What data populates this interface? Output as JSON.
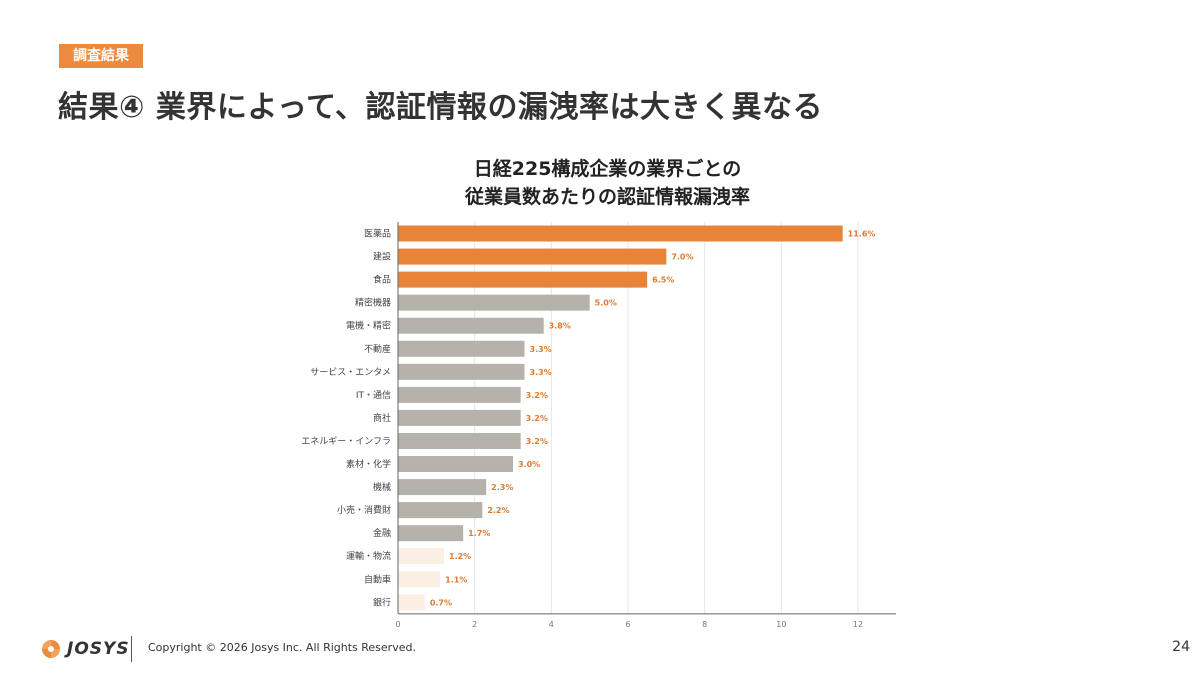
{
  "header": {
    "tag_label": "調査結果",
    "title": "結果④ 業界によって、認証情報の漏洩率は大きく異なる"
  },
  "chart_data": {
    "type": "bar",
    "orientation": "horizontal",
    "title_lines": [
      "日経225構成企業の業界ごとの",
      "従業員数あたりの認証情報漏洩率"
    ],
    "categories": [
      "医薬品",
      "建設",
      "食品",
      "精密機器",
      "電機・精密",
      "不動産",
      "サービス・エンタメ",
      "IT・通信",
      "商社",
      "エネルギー・インフラ",
      "素材・化学",
      "機械",
      "小売・消費財",
      "金融",
      "運輸・物流",
      "自動車",
      "銀行"
    ],
    "values": [
      11.6,
      7.0,
      6.5,
      5.0,
      3.8,
      3.3,
      3.3,
      3.2,
      3.2,
      3.2,
      3.0,
      2.3,
      2.2,
      1.7,
      1.2,
      1.1,
      0.7
    ],
    "value_labels": [
      "11.6%",
      "7.0%",
      "6.5%",
      "5.0%",
      "3.8%",
      "3.3%",
      "3.3%",
      "3.2%",
      "3.2%",
      "3.2%",
      "3.0%",
      "2.3%",
      "2.2%",
      "1.7%",
      "1.2%",
      "1.1%",
      "0.7%"
    ],
    "highlight": [
      "high",
      "high",
      "high",
      "mid",
      "mid",
      "mid",
      "mid",
      "mid",
      "mid",
      "mid",
      "mid",
      "mid",
      "mid",
      "mid",
      "low",
      "low",
      "low"
    ],
    "xlim": [
      0,
      12
    ],
    "xticks": [
      0,
      2,
      4,
      6,
      8,
      10,
      12
    ],
    "grid": true,
    "legend": "none",
    "colors": {
      "high": "#e8843a",
      "mid": "#b5b1ab",
      "low": "#fbeee3",
      "value_label": "#e07b2e",
      "grid": "#e6e6e6",
      "axis": "#666666"
    }
  },
  "footer": {
    "logo_text": "JOSYS",
    "copyright": "Copyright © 2026 Josys Inc. All Rights Reserved.",
    "page_number": "24"
  }
}
